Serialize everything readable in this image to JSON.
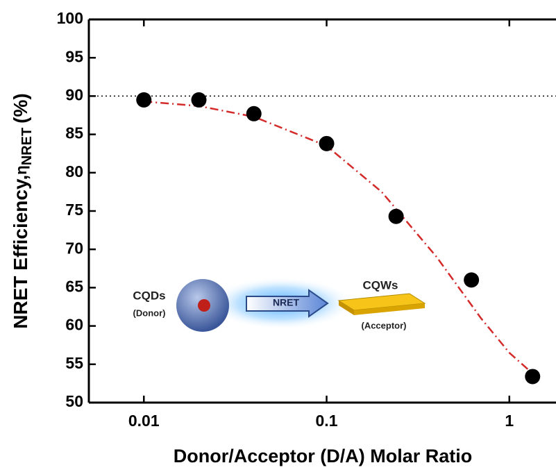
{
  "chart_data": {
    "type": "scatter",
    "xlabel": "Donor/Acceptor (D/A) Molar Ratio",
    "ylabel": "NRET Efficiency,",
    "ylabel_symbol": "η",
    "ylabel_sub": "NRET",
    "ylabel_unit": "(%)",
    "xscale": "log",
    "xlim": [
      0.005,
      1.8
    ],
    "ylim": [
      50,
      100
    ],
    "xticks": [
      0.01,
      0.1,
      1
    ],
    "yticks": [
      50,
      55,
      60,
      65,
      70,
      75,
      80,
      85,
      90,
      95,
      100
    ],
    "hline": 90,
    "series": [
      {
        "type": "scatter",
        "color": "#000000",
        "x": [
          0.01,
          0.02,
          0.04,
          0.1,
          0.24,
          0.62,
          1.34
        ],
        "values": [
          89.5,
          89.5,
          87.7,
          83.8,
          74.3,
          66,
          53.4
        ]
      },
      {
        "type": "line",
        "color": "#d42a2a",
        "x": [
          0.01,
          0.02,
          0.04,
          0.1,
          0.2,
          0.4,
          0.7,
          1,
          1.34
        ],
        "values": [
          89.3,
          88.7,
          87.3,
          83.5,
          77.5,
          69,
          61,
          56.5,
          53.8
        ]
      }
    ],
    "annotations": [
      {
        "text": "CQDs"
      },
      {
        "text": "(Donor)"
      },
      {
        "text": "NRET"
      },
      {
        "text": "CQWs"
      },
      {
        "text": "(Acceptor)"
      }
    ]
  }
}
